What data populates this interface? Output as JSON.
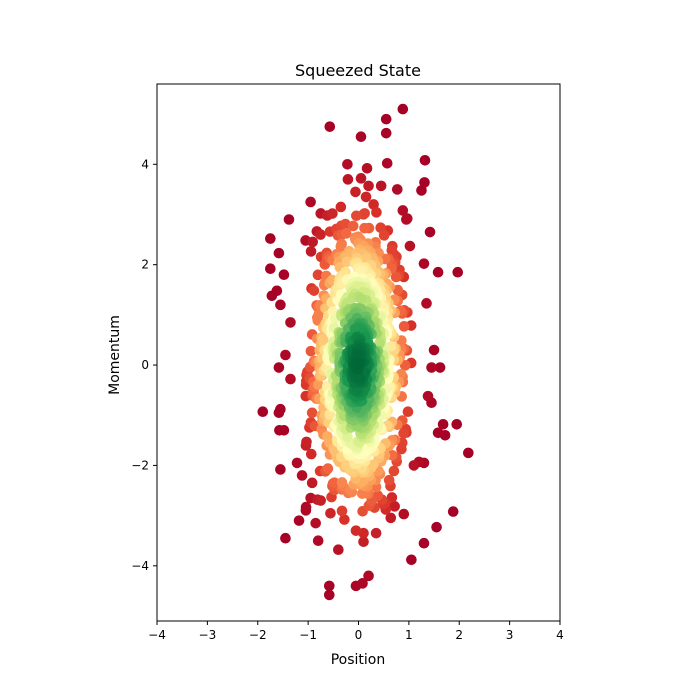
{
  "chart_data": {
    "type": "scatter",
    "title": "Squeezed State",
    "xlabel": "Position",
    "ylabel": "Momentum",
    "xlim": [
      -4,
      4
    ],
    "ylim": [
      -5.1,
      5.6
    ],
    "xticks": [
      -4,
      -3,
      -2,
      -1,
      0,
      1,
      2,
      3,
      4
    ],
    "yticks": [
      -4,
      -2,
      0,
      2,
      4
    ],
    "colormap": "RdYlGn",
    "color_encoding": "density (high = green, low = red)",
    "grid": false,
    "series": [
      {
        "name": "samples",
        "points": [
          [
            0.88,
            5.1
          ],
          [
            -0.57,
            4.75
          ],
          [
            0.55,
            4.9
          ],
          [
            0.05,
            4.55
          ],
          [
            0.55,
            4.62
          ],
          [
            1.32,
            4.08
          ],
          [
            -0.22,
            4.0
          ],
          [
            0.57,
            4.02
          ],
          [
            0.17,
            3.92
          ],
          [
            1.31,
            3.64
          ],
          [
            -0.21,
            3.7
          ],
          [
            0.05,
            3.72
          ],
          [
            0.2,
            3.57
          ],
          [
            0.45,
            3.57
          ],
          [
            0.77,
            3.5
          ],
          [
            1.25,
            3.48
          ],
          [
            -0.06,
            3.45
          ],
          [
            0.15,
            3.35
          ],
          [
            -0.95,
            3.25
          ],
          [
            0.3,
            3.2
          ],
          [
            0.88,
            3.08
          ],
          [
            -0.75,
            3.02
          ],
          [
            -0.62,
            2.98
          ],
          [
            -0.35,
            3.15
          ],
          [
            0.95,
            2.9
          ],
          [
            -1.38,
            2.9
          ],
          [
            1.42,
            2.65
          ],
          [
            -1.75,
            2.52
          ],
          [
            -1.58,
            2.23
          ],
          [
            1.58,
            1.85
          ],
          [
            1.97,
            1.85
          ],
          [
            -1.75,
            1.92
          ],
          [
            -1.48,
            1.8
          ],
          [
            1.3,
            2.02
          ],
          [
            1.35,
            1.23
          ],
          [
            -1.62,
            1.48
          ],
          [
            -1.72,
            1.38
          ],
          [
            -1.55,
            1.2
          ],
          [
            -1.35,
            0.85
          ],
          [
            1.5,
            0.3
          ],
          [
            1.45,
            -0.05
          ],
          [
            1.62,
            -0.05
          ],
          [
            -1.45,
            0.2
          ],
          [
            -1.58,
            -0.05
          ],
          [
            -1.35,
            -0.28
          ],
          [
            1.38,
            -0.62
          ],
          [
            1.45,
            -0.75
          ],
          [
            -1.9,
            -0.93
          ],
          [
            -1.55,
            -0.88
          ],
          [
            -1.58,
            -0.95
          ],
          [
            1.95,
            -1.18
          ],
          [
            1.68,
            -1.18
          ],
          [
            -1.48,
            -1.3
          ],
          [
            -1.57,
            -1.3
          ],
          [
            1.72,
            -1.4
          ],
          [
            1.58,
            -1.35
          ],
          [
            2.18,
            -1.75
          ],
          [
            -1.22,
            -1.95
          ],
          [
            1.2,
            -1.93
          ],
          [
            1.3,
            -1.95
          ],
          [
            -1.55,
            -2.08
          ],
          [
            -1.12,
            -2.2
          ],
          [
            1.1,
            -2.0
          ],
          [
            -0.95,
            -2.65
          ],
          [
            -0.75,
            -2.7
          ],
          [
            -1.45,
            -3.45
          ],
          [
            -1.18,
            -3.1
          ],
          [
            1.88,
            -2.92
          ],
          [
            1.55,
            -3.23
          ],
          [
            0.9,
            -2.97
          ],
          [
            -0.8,
            -3.5
          ],
          [
            -0.4,
            -3.68
          ],
          [
            -0.05,
            -3.3
          ],
          [
            0.1,
            -3.35
          ],
          [
            0.35,
            -3.35
          ],
          [
            1.3,
            -3.55
          ],
          [
            0.1,
            -3.52
          ],
          [
            1.05,
            -3.88
          ],
          [
            0.2,
            -4.2
          ],
          [
            0.08,
            -4.35
          ],
          [
            -0.05,
            -4.4
          ],
          [
            -0.58,
            -4.4
          ],
          [
            -0.58,
            -4.58
          ],
          [
            -0.85,
            -3.15
          ],
          [
            -0.28,
            -3.08
          ]
        ]
      }
    ]
  }
}
